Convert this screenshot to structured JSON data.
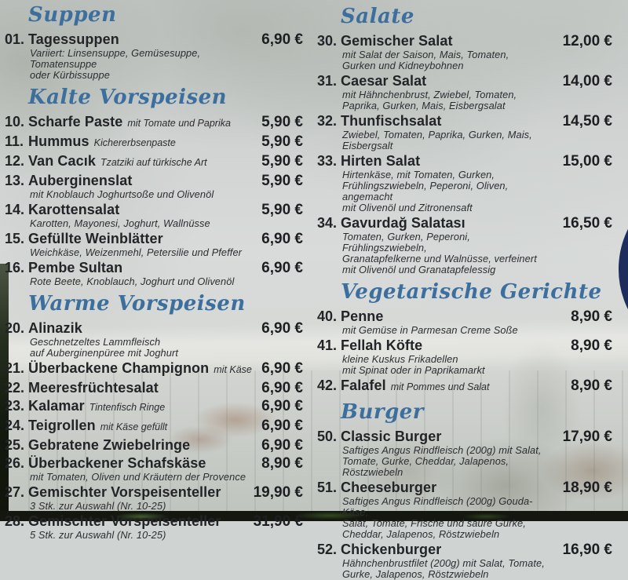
{
  "colors": {
    "header_accent": "#3c6f9e",
    "text": "#242529",
    "panel": "#cfd3d2",
    "logo_ring": "#1e2d5b",
    "logo_fill": "#2b76b0"
  },
  "menu": {
    "columns": [
      {
        "sections": [
          {
            "header": "Suppen",
            "items": [
              {
                "num": "01.",
                "title": "Tagessuppen",
                "suffix": "",
                "price": "6,90 €",
                "desc": [
                  "Variiert: Linsensuppe, Gemüsesuppe, Tomatensuppe",
                  "oder Kürbissuppe"
                ]
              }
            ]
          },
          {
            "header": "Kalte Vorspeisen",
            "items": [
              {
                "num": "10.",
                "title": "Scharfe Paste",
                "suffix": "mit Tomate und Paprika",
                "price": "5,90 €",
                "desc": []
              },
              {
                "num": "11.",
                "title": "Hummus",
                "suffix": "Kichererbsenpaste",
                "price": "5,90 €",
                "desc": []
              },
              {
                "num": "12.",
                "title": "Van Cacık",
                "suffix": "Tzatziki auf türkische Art",
                "price": "5,90 €",
                "desc": []
              },
              {
                "num": "13.",
                "title": "Auberginenslat",
                "suffix": "",
                "price": "5,90 €",
                "desc": [
                  "mit Knoblauch Joghurtsoße und Olivenöl"
                ]
              },
              {
                "num": "14.",
                "title": "Karottensalat",
                "suffix": "",
                "price": "5,90 €",
                "desc": [
                  "Karotten, Mayonesi, Joghurt, Wallnüsse"
                ]
              },
              {
                "num": "15.",
                "title": "Gefüllte Weinblätter",
                "suffix": "",
                "price": "6,90 €",
                "desc": [
                  "Weichkäse, Weizenmehl, Petersilie und Pfeffer"
                ]
              },
              {
                "num": "16.",
                "title": "Pembe Sultan",
                "suffix": "",
                "price": "6,90 €",
                "desc": [
                  "Rote Beete, Knoblauch, Joghurt und Olivenöl"
                ]
              }
            ]
          },
          {
            "header": "Warme Vorspeisen",
            "items": [
              {
                "num": "20.",
                "title": "Alinazik",
                "suffix": "",
                "price": "6,90 €",
                "desc": [
                  "Geschnetzeltes Lammfleisch",
                  "auf Auberginenpüree mit Joghurt"
                ]
              },
              {
                "num": "21.",
                "title": "Überbackene Champignon",
                "suffix": "mit Käse",
                "price": "6,90 €",
                "desc": []
              },
              {
                "num": "22.",
                "title": "Meeresfrüchtesalat",
                "suffix": "",
                "price": "6,90 €",
                "desc": []
              },
              {
                "num": "23.",
                "title": "Kalamar",
                "suffix": "Tintenfisch Ringe",
                "price": "6,90 €",
                "desc": []
              },
              {
                "num": "24.",
                "title": "Teigrollen",
                "suffix": "mit Käse gefüllt",
                "price": "6,90 €",
                "desc": []
              },
              {
                "num": "25.",
                "title": "Gebratene Zwiebelringe",
                "suffix": "",
                "price": "6,90 €",
                "desc": []
              },
              {
                "num": "26.",
                "title": "Überbackener Schafskäse",
                "suffix": "",
                "price": "8,90 €",
                "desc": [
                  "mit Tomaten, Oliven und Kräutern der Provence"
                ]
              },
              {
                "num": "27.",
                "title": "Gemischter Vorspeisenteller",
                "suffix": "",
                "price": "19,90 €",
                "desc": [
                  "3 Stk.  zur Auswahl (Nr. 10-25)"
                ]
              },
              {
                "num": "28.",
                "title": "Gemischter Vorspeisenteller",
                "suffix": "",
                "price": "31,90 €",
                "desc": [
                  "5 Stk.  zur Auswahl (Nr. 10-25)"
                ]
              }
            ]
          }
        ]
      },
      {
        "sections": [
          {
            "header": "Salate",
            "items": [
              {
                "num": "30.",
                "title": "Gemischer Salat",
                "suffix": "",
                "price": "12,00 €",
                "desc": [
                  "mit Salat der Saison, Mais, Tomaten,",
                  "Gurken und Kidneybohnen"
                ]
              },
              {
                "num": "31.",
                "title": "Caesar Salat",
                "suffix": "",
                "price": "14,00 €",
                "desc": [
                  "mit Hähnchenbrust, Zwiebel, Tomaten,",
                  "Paprika, Gurken, Mais, Eisbergsalat"
                ]
              },
              {
                "num": "32.",
                "title": "Thunfischsalat",
                "suffix": "",
                "price": "14,50 €",
                "desc": [
                  "Zwiebel, Tomaten, Paprika, Gurken, Mais, Eisbergsalt"
                ]
              },
              {
                "num": "33.",
                "title": "Hirten Salat",
                "suffix": "",
                "price": "15,00 €",
                "desc": [
                  "Hirtenkäse, mit Tomaten, Gurken,",
                  "Frühlingszwiebeln, Peperoni, Oliven, angemacht",
                  "mit Olivenöl und Zitronensaft"
                ]
              },
              {
                "num": "34.",
                "title": "Gavurdağ Salatası",
                "suffix": "",
                "price": "16,50 €",
                "desc": [
                  "Tomaten, Gurken, Peperoni, Frühlingszwiebeln,",
                  "Granatapfelkerne und Walnüsse, verfeinert",
                  "mit Olivenöl und Granatapfelessig"
                ]
              }
            ]
          },
          {
            "header": "Vegetarische Gerichte",
            "items": [
              {
                "num": "40.",
                "title": "Penne",
                "suffix": "",
                "price": "8,90 €",
                "desc": [
                  "mit Gemüse in Parmesan Creme Soße"
                ]
              },
              {
                "num": "41.",
                "title": "Fellah Köfte",
                "suffix": "",
                "price": "8,90 €",
                "desc": [
                  "kleine Kuskus Frikadellen",
                  "mit Spinat oder in Paprikamarkt"
                ]
              },
              {
                "num": "42.",
                "title": "Falafel",
                "suffix": "mit Pommes und Salat",
                "price": "8,90 €",
                "desc": []
              }
            ]
          },
          {
            "header": "Burger",
            "items": [
              {
                "num": "50.",
                "title": "Classic Burger",
                "suffix": "",
                "price": "17,90 €",
                "desc": [
                  "Saftiges Angus Rindfleisch (200g) mit Salat,",
                  "Tomate, Gurke, Cheddar, Jalapenos, Röstzwiebeln"
                ]
              },
              {
                "num": "51.",
                "title": "Cheeseburger",
                "suffix": "",
                "price": "18,90 €",
                "desc": [
                  "Saftiges Angus Rindfleisch (200g) Gouda-Käse,",
                  "Salat, Tomate, Frische und saure Gurke,",
                  "Cheddar, Jalapenos, Röstzwiebeln"
                ]
              },
              {
                "num": "52.",
                "title": "Chickenburger",
                "suffix": "",
                "price": "16,90 €",
                "desc": [
                  "Hähnchenbrustfilet (200g) mit Salat, Tomate,",
                  "Gurke, Jalapenos, Röstzwiebeln"
                ]
              }
            ]
          }
        ]
      }
    ]
  }
}
